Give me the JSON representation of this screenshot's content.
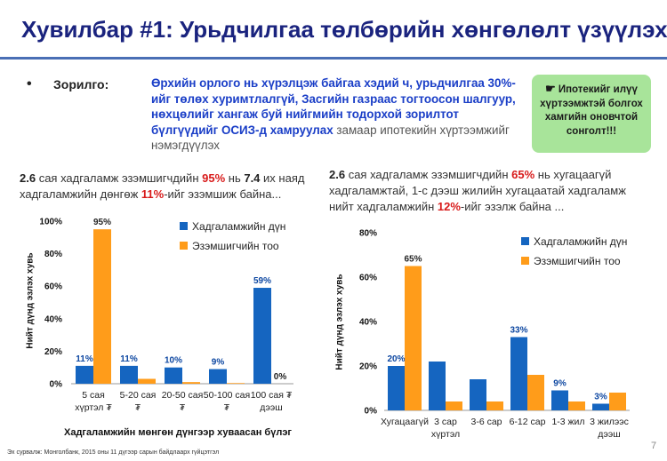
{
  "title": "Хувилбар #1: Урьдчилгаа төлбөрийн хөнгөлөлт үзүүлэх",
  "goal": {
    "bullet": "•",
    "label": "Зорилго:",
    "text_blue": "Өрхийн орлого нь хүрэлцэж байгаа хэдий ч, урьдчилгаа 30%-ийг төлөх хуримтлалгүй, Засгийн газраас тогтоосон шалгуур, нөхцөлийг хангаж буй нийгмийн тодорхой зорилтот бүлгүүдийг ОСИЗ-д хамруулах",
    "text_plain": " замаар ипотекийн хүртээмжийг нэмэгдүүлэх"
  },
  "badge": {
    "icon": "pointing-hand-icon",
    "icon_glyph": "☛",
    "text": "Ипотекийг илүү хүртээмжтэй болгох хамгийн оновчтой сонголт!!!"
  },
  "left_desc": {
    "p1": "2.6",
    "p2": " сая хадгаламж эзэмшигчдийн ",
    "p3": "95%",
    "p4": " нь ",
    "p5": "7.4",
    "p6": " их наяд хадгаламжийн дөнгөж ",
    "p7": "11%",
    "p8": "-ийг эзэмшиж байна..."
  },
  "right_desc": {
    "p1": "2.6",
    "p2": " сая хадгаламж эзэмшигчдийн ",
    "p3": "65%",
    "p4": " нь хугацаагүй хадгаламжтай, 1-с дээш жилийн хугацаатай хадгаламж нийт хадгаламжийн ",
    "p5": "12%",
    "p6": "-ийг эзэлж байна ..."
  },
  "colors": {
    "blue": "#1565c0",
    "orange": "#ff9c1a",
    "red": "#d81b1b",
    "title": "#1a237e"
  },
  "source": "Эх сурвалж: Монголбанк, 2015 оны 11 дүгээр сарын байдлаарх гүйцэтгэл",
  "page_number": "7",
  "chart_data": [
    {
      "type": "bar",
      "title": "",
      "xlabel": "Хадгаламжийн мөнгөн дүнгээр хуваасан бүлэг",
      "ylabel": "Нийт дүнд эзлэх хувь",
      "ylim": [
        0,
        100
      ],
      "yticks": [
        "0%",
        "20%",
        "40%",
        "60%",
        "80%",
        "100%"
      ],
      "categories": [
        "5 сая хүртэл ₮",
        "5-20 сая ₮",
        "20-50 сая ₮",
        "50-100 сая ₮",
        "100 сая ₮ дээш"
      ],
      "category_lines": [
        [
          "5 сая",
          "хүртэл ₮"
        ],
        [
          "5-20    сая",
          "₮"
        ],
        [
          "20-50 сая",
          "₮"
        ],
        [
          "50-100 сая",
          "₮"
        ],
        [
          "100 сая ₮",
          "дээш"
        ]
      ],
      "series": [
        {
          "name": "Хадгаламжийн дүн",
          "values": [
            11,
            11,
            10,
            9,
            59
          ],
          "labels": [
            "11%",
            "11%",
            "10%",
            "9%",
            "59%"
          ]
        },
        {
          "name": "Эзэмшигчийн тоо",
          "values": [
            95,
            3,
            1,
            0.4,
            0
          ],
          "labels": [
            "95%",
            "",
            "",
            "",
            "0%"
          ]
        }
      ],
      "legend": "top-right"
    },
    {
      "type": "bar",
      "title": "",
      "xlabel": "",
      "ylabel": "Нийт дүнд эзлэх хувь",
      "ylim": [
        0,
        80
      ],
      "yticks": [
        "0%",
        "20%",
        "40%",
        "60%",
        "80%"
      ],
      "categories": [
        "Хугацаагүй",
        "3 сар хүртэл",
        "3-6 сар",
        "6-12 сар",
        "1-3 жил",
        "3 жилээс дээш"
      ],
      "category_lines": [
        [
          "Хугацаагүй"
        ],
        [
          "3 сар",
          "хүртэл"
        ],
        [
          "3-6 сар"
        ],
        [
          "6-12 сар"
        ],
        [
          "1-3 жил"
        ],
        [
          "3 жилээс",
          "дээш"
        ]
      ],
      "series": [
        {
          "name": "Хадгаламжийн дүн",
          "values": [
            20,
            22,
            14,
            33,
            9,
            3
          ],
          "labels": [
            "20%",
            "",
            "",
            "33%",
            "9%",
            "3%"
          ]
        },
        {
          "name": "Эзэмшигчийн тоо",
          "values": [
            65,
            4,
            4,
            16,
            4,
            8
          ],
          "labels": [
            "65%",
            "",
            "",
            "",
            "",
            ""
          ]
        }
      ],
      "legend": "top-right"
    }
  ]
}
